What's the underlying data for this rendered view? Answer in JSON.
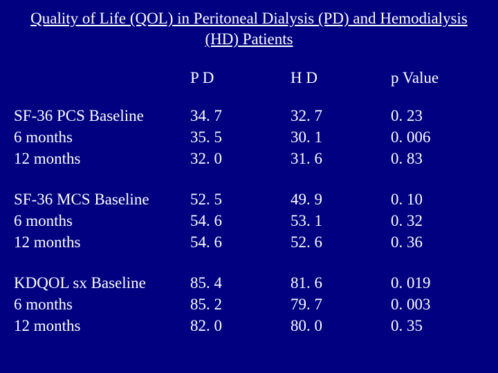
{
  "colors": {
    "background": "#000080",
    "text": "#ffffff"
  },
  "typography": {
    "family": "Times New Roman",
    "title_pt": 23,
    "body_pt": 23
  },
  "title": "Quality of Life (QOL) in Peritoneal Dialysis (PD) and Hemodialysis (HD) Patients",
  "headers": {
    "pd": "P D",
    "hd": "H D",
    "pval": "p Value"
  },
  "groups": [
    {
      "rows": [
        {
          "label": "SF-36 PCS Baseline",
          "pd": "34. 7",
          "hd": "32. 7",
          "pval": "0. 23"
        },
        {
          "label": "6 months",
          "pd": "35. 5",
          "hd": "30. 1",
          "pval": "0. 006"
        },
        {
          "label": "12 months",
          "pd": "32. 0",
          "hd": "31. 6",
          "pval": "0. 83"
        }
      ]
    },
    {
      "rows": [
        {
          "label": "SF-36 MCS Baseline",
          "pd": "52. 5",
          "hd": "49. 9",
          "pval": "0. 10"
        },
        {
          "label": "6 months",
          "pd": "54. 6",
          "hd": "53. 1",
          "pval": "0. 32"
        },
        {
          "label": "12 months",
          "pd": "54. 6",
          "hd": "52. 6",
          "pval": "0. 36"
        }
      ]
    },
    {
      "rows": [
        {
          "label": "KDQOL sx Baseline",
          "pd": "85. 4",
          "hd": "81. 6",
          "pval": "0. 019"
        },
        {
          "label": "6 months",
          "pd": "85. 2",
          "hd": "79. 7",
          "pval": "0. 003"
        },
        {
          "label": "12 months",
          "pd": "82. 0",
          "hd": " 80. 0",
          "pval": "0. 35"
        }
      ]
    }
  ]
}
